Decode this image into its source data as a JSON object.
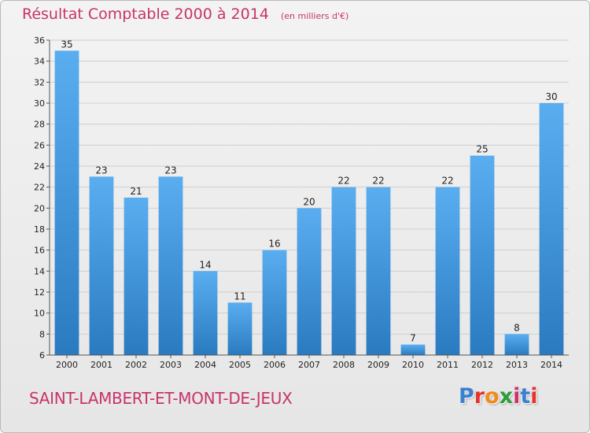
{
  "header": {
    "title": "Résultat Comptable 2000 à 2014",
    "subtitle": "(en milliers d'€)"
  },
  "footer": {
    "place": "SAINT-LAMBERT-ET-MONT-DE-JEUX",
    "logo": "Proxiti",
    "logo_colors": [
      "#3b7fd0",
      "#e5322d",
      "#f08a1c",
      "#2e9b3d",
      "#c8336b",
      "#3b7fd0",
      "#e5322d"
    ]
  },
  "colors": {
    "accent": "#c8336b",
    "bar_top": "#5aaef0",
    "bar_bottom": "#2a7ac0"
  },
  "chart_data": {
    "type": "bar",
    "title": "Résultat Comptable 2000 à 2014",
    "subtitle": "(en milliers d'€)",
    "categories": [
      "2000",
      "2001",
      "2002",
      "2003",
      "2004",
      "2005",
      "2006",
      "2007",
      "2008",
      "2009",
      "2010",
      "2011",
      "2012",
      "2013",
      "2014"
    ],
    "values": [
      35,
      23,
      21,
      23,
      14,
      11,
      16,
      20,
      22,
      22,
      7,
      22,
      25,
      8,
      30
    ],
    "ylim": [
      6,
      36
    ],
    "yticks": [
      6,
      8,
      10,
      12,
      14,
      16,
      18,
      20,
      22,
      24,
      26,
      28,
      30,
      32,
      34,
      36
    ],
    "grid": true,
    "legend": "none"
  }
}
